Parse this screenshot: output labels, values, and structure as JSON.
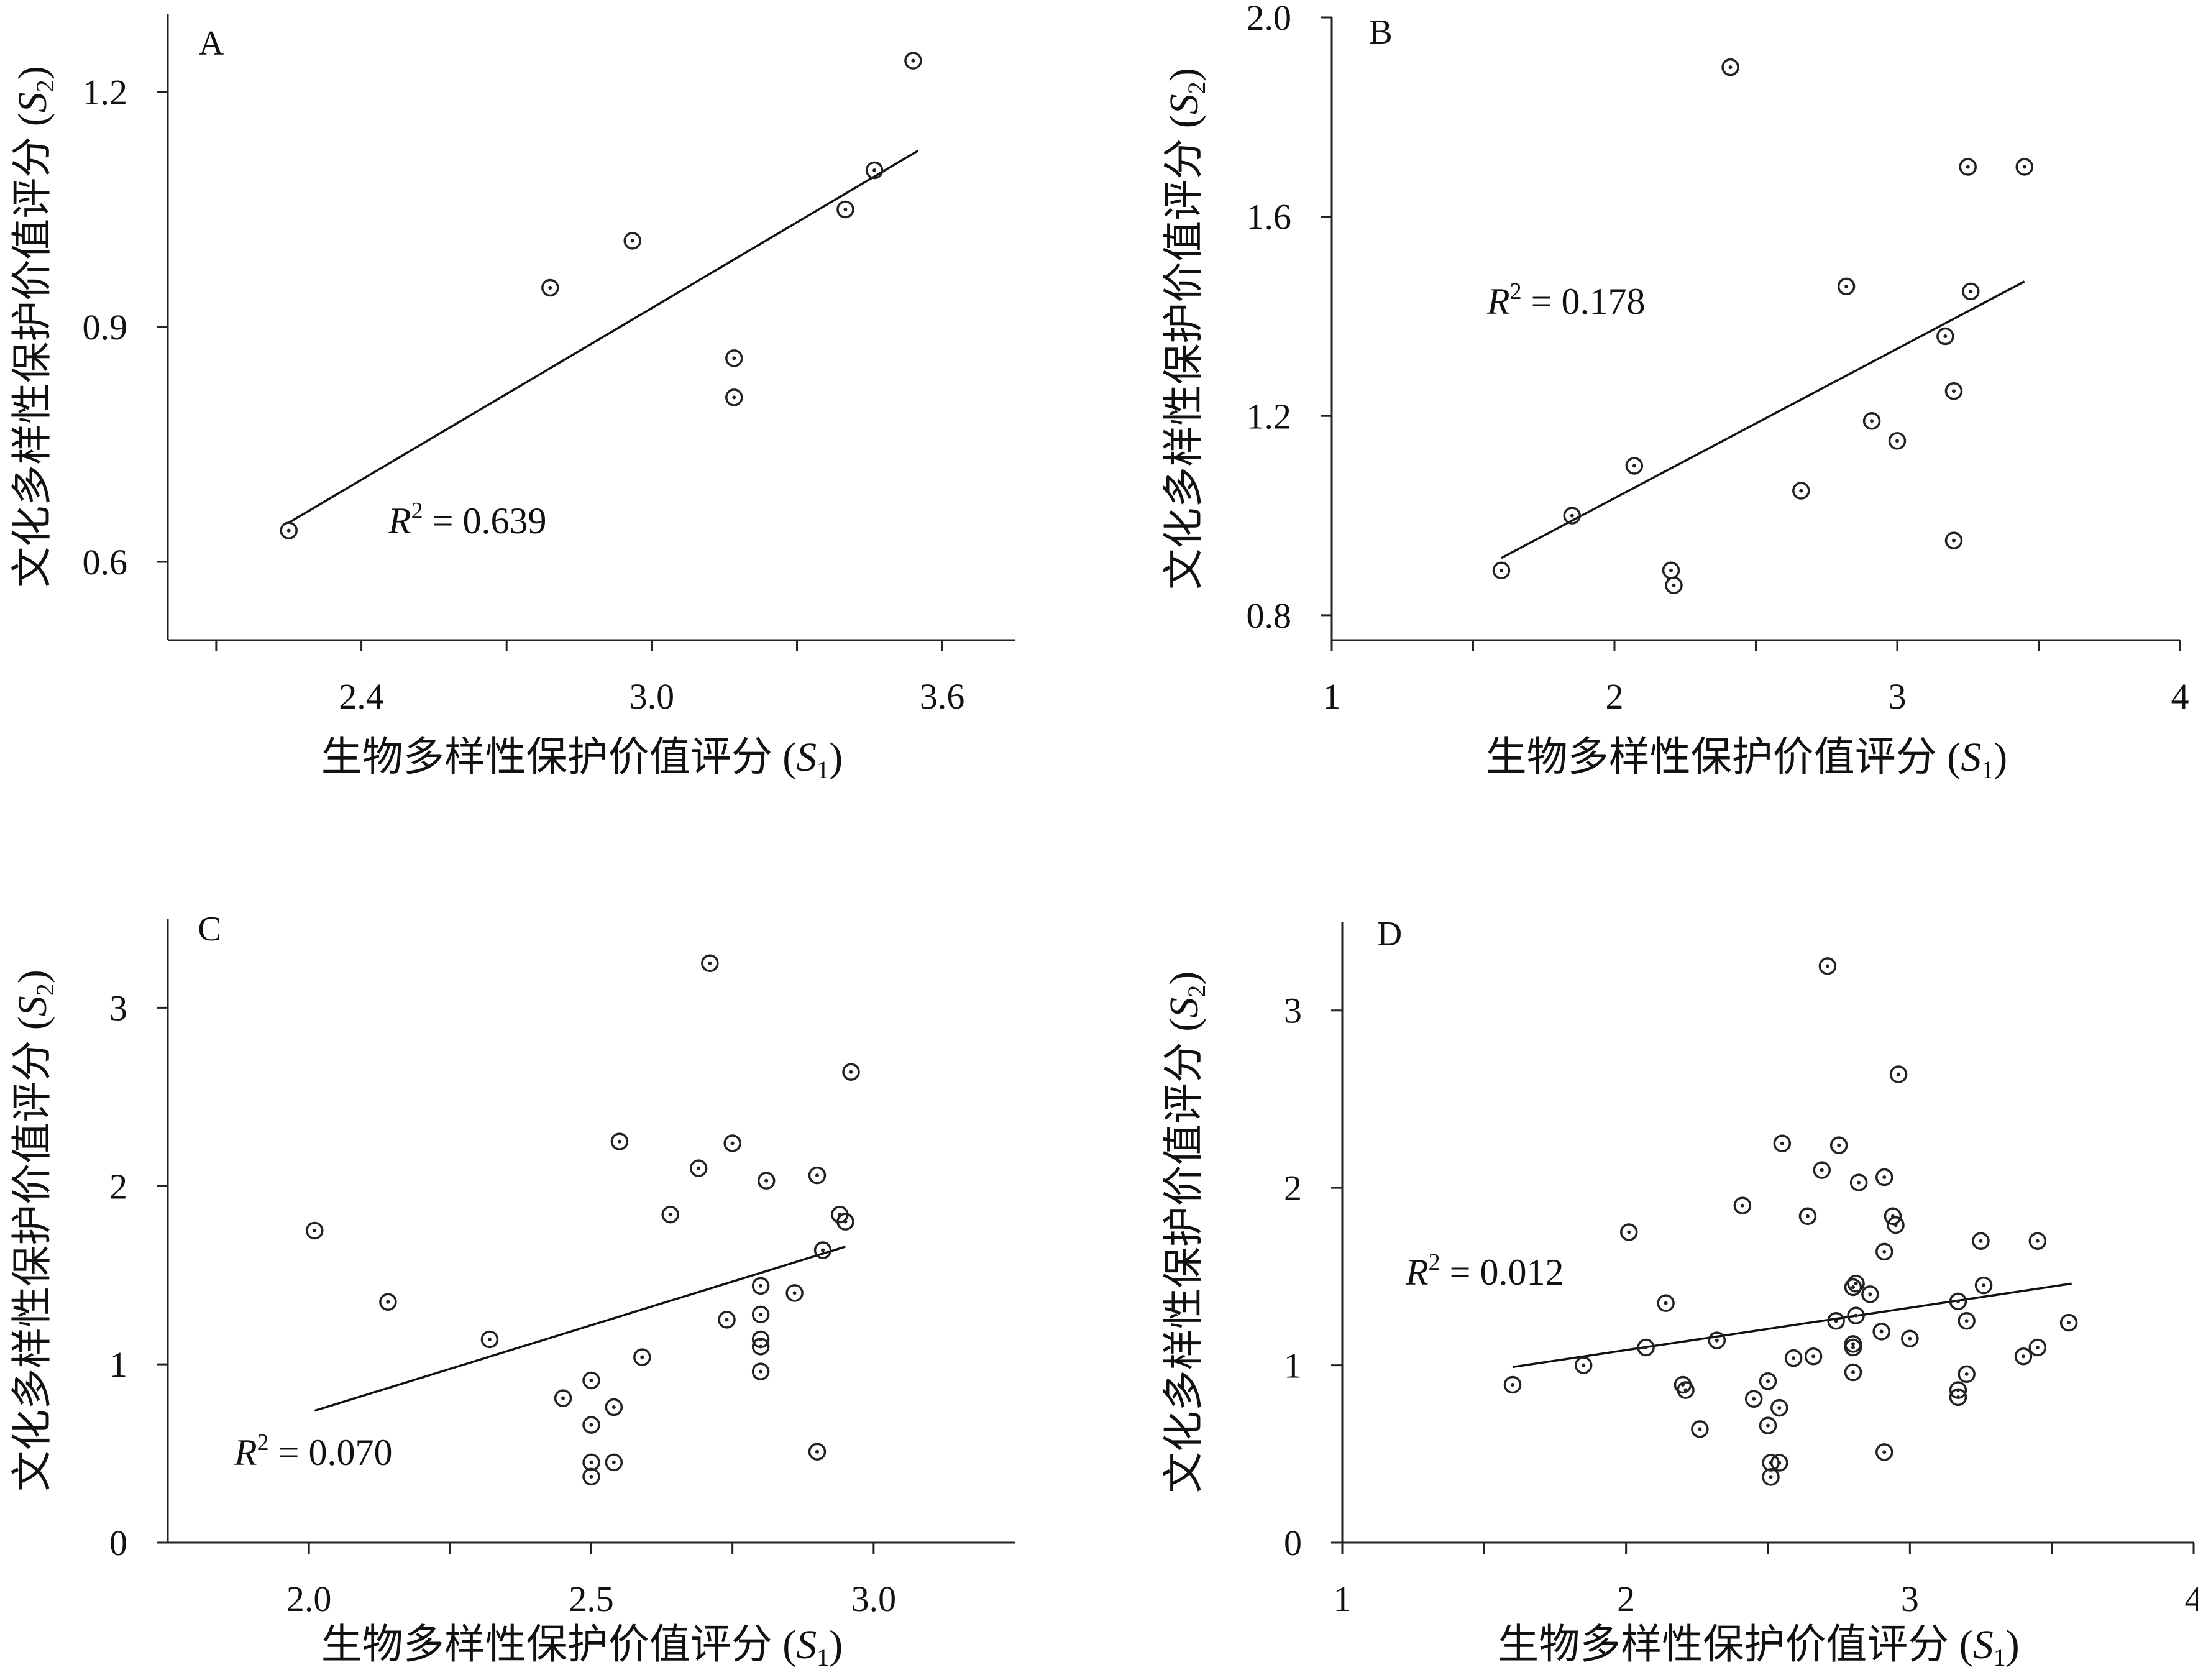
{
  "chart_data": [
    {
      "type": "scatter",
      "panel": "A",
      "xlabel": "生物多样性保护价值评分",
      "xlabel_sym": "S",
      "xlabel_sub": "1",
      "ylabel": "文化多样性保护价值评分",
      "ylabel_sym": "S",
      "ylabel_sub": "2",
      "xlim": [
        2.0,
        3.75
      ],
      "ylim": [
        0.5,
        1.3
      ],
      "xticks": [
        2.4,
        3.0,
        3.6
      ],
      "xtick_labels": [
        "2.4",
        "3.0",
        "3.6"
      ],
      "xminor": [
        2.1,
        2.7,
        3.3
      ],
      "yticks": [
        0.6,
        0.9,
        1.2
      ],
      "ytick_labels": [
        "0.6",
        "0.9",
        "1.2"
      ],
      "r2_sym": "R",
      "r2_text": " = 0.639",
      "fit": {
        "x": [
          2.25,
          3.55
        ],
        "y": [
          0.65,
          1.125
        ]
      },
      "x": [
        2.25,
        2.79,
        2.96,
        3.17,
        3.17,
        3.4,
        3.46,
        3.54
      ],
      "y": [
        0.64,
        0.95,
        1.01,
        0.86,
        0.81,
        1.05,
        1.1,
        1.24
      ]
    },
    {
      "type": "scatter",
      "panel": "B",
      "xlabel": "生物多样性保护价值评分",
      "xlabel_sym": "S",
      "xlabel_sub": "1",
      "ylabel": "文化多样性保护价值评分",
      "ylabel_sym": "S",
      "ylabel_sub": "2",
      "xlim": [
        1,
        4
      ],
      "ylim": [
        0.75,
        2.0
      ],
      "xticks": [
        1,
        2,
        3,
        4
      ],
      "xtick_labels": [
        "1",
        "2",
        "3",
        "4"
      ],
      "xminor": [
        1.5,
        2.5,
        3.5
      ],
      "yticks": [
        0.8,
        1.2,
        1.6,
        2.0
      ],
      "ytick_labels": [
        "0.8",
        "1.2",
        "1.6",
        "2.0"
      ],
      "r2_sym": "R",
      "r2_text": " = 0.178",
      "fit": {
        "x": [
          1.6,
          3.45
        ],
        "y": [
          0.915,
          1.47
        ]
      },
      "x": [
        1.6,
        1.85,
        2.07,
        2.2,
        2.21,
        2.41,
        2.66,
        2.82,
        2.91,
        3.0,
        3.17,
        3.2,
        3.25,
        3.26,
        3.2,
        3.45
      ],
      "y": [
        0.89,
        1.0,
        1.1,
        0.89,
        0.86,
        1.9,
        1.05,
        1.46,
        1.19,
        1.15,
        1.36,
        1.25,
        1.7,
        1.45,
        0.95,
        1.7
      ]
    },
    {
      "type": "scatter",
      "panel": "C",
      "xlabel": "生物多样性保护价值评分",
      "xlabel_sym": "S",
      "xlabel_sub": "1",
      "ylabel": "文化多样性保护价值评分",
      "ylabel_sym": "S",
      "ylabel_sub": "2",
      "xlim": [
        1.75,
        3.25
      ],
      "ylim": [
        0,
        3.5
      ],
      "xticks": [
        2.0,
        2.5,
        3.0
      ],
      "xtick_labels": [
        "2.0",
        "2.5",
        "3.0"
      ],
      "xminor": [
        2.25,
        2.75
      ],
      "yticks": [
        0,
        1,
        2,
        3
      ],
      "ytick_labels": [
        "0",
        "1",
        "2",
        "3"
      ],
      "r2_sym": "R",
      "r2_text": " = 0.070",
      "fit": {
        "x": [
          2.01,
          2.95
        ],
        "y": [
          0.74,
          1.66
        ]
      },
      "x": [
        2.01,
        2.14,
        2.32,
        2.45,
        2.5,
        2.5,
        2.5,
        2.5,
        2.54,
        2.54,
        2.55,
        2.59,
        2.64,
        2.69,
        2.71,
        2.74,
        2.75,
        2.8,
        2.8,
        2.8,
        2.8,
        2.8,
        2.81,
        2.86,
        2.9,
        2.9,
        2.91,
        2.94,
        2.95,
        2.96
      ],
      "y": [
        1.75,
        1.35,
        1.14,
        0.81,
        0.91,
        0.66,
        0.45,
        0.37,
        0.76,
        0.45,
        2.25,
        1.04,
        1.84,
        2.1,
        3.25,
        1.25,
        2.24,
        1.44,
        1.28,
        1.14,
        1.1,
        0.96,
        2.03,
        1.4,
        2.06,
        0.51,
        1.64,
        1.84,
        1.8,
        2.64
      ]
    },
    {
      "type": "scatter",
      "panel": "D",
      "xlabel": "生物多样性保护价值评分",
      "xlabel_sym": "S",
      "xlabel_sub": "1",
      "ylabel": "文化多样性保护价值评分",
      "ylabel_sym": "S",
      "ylabel_sub": "2",
      "xlim": [
        1,
        4
      ],
      "ylim": [
        0,
        3.5
      ],
      "xticks": [
        1,
        2,
        3,
        4
      ],
      "xtick_labels": [
        "1",
        "2",
        "3",
        "4"
      ],
      "xminor": [
        1.5,
        2.5,
        3.5
      ],
      "yticks": [
        0,
        1,
        2,
        3
      ],
      "ytick_labels": [
        "0",
        "1",
        "2",
        "3"
      ],
      "r2_sym": "R",
      "r2_text": " = 0.012",
      "fit": {
        "x": [
          1.6,
          3.57
        ],
        "y": [
          0.99,
          1.46
        ]
      },
      "x": [
        1.6,
        1.85,
        2.01,
        2.07,
        2.14,
        2.2,
        2.21,
        2.26,
        2.32,
        2.41,
        2.45,
        2.5,
        2.5,
        2.51,
        2.51,
        2.54,
        2.54,
        2.55,
        2.59,
        2.64,
        2.66,
        2.69,
        2.71,
        2.74,
        2.75,
        2.8,
        2.8,
        2.8,
        2.8,
        2.81,
        2.81,
        2.82,
        2.86,
        2.9,
        2.91,
        2.91,
        2.91,
        2.94,
        2.95,
        2.96,
        3.0,
        3.17,
        3.17,
        3.17,
        3.2,
        3.2,
        3.25,
        3.26,
        3.4,
        3.45,
        3.45,
        3.56
      ],
      "y": [
        0.89,
        1.0,
        1.75,
        1.1,
        1.35,
        0.89,
        0.86,
        0.64,
        1.14,
        1.9,
        0.81,
        0.91,
        0.66,
        0.45,
        0.37,
        0.76,
        0.45,
        2.25,
        1.04,
        1.84,
        1.05,
        2.1,
        3.25,
        1.25,
        2.24,
        1.12,
        1.1,
        0.96,
        1.44,
        1.28,
        1.46,
        2.03,
        1.4,
        1.19,
        2.06,
        0.51,
        1.64,
        1.84,
        1.79,
        2.64,
        1.15,
        1.36,
        0.86,
        0.82,
        1.25,
        0.95,
        1.7,
        1.45,
        1.05,
        1.1,
        1.7,
        1.24
      ]
    }
  ]
}
